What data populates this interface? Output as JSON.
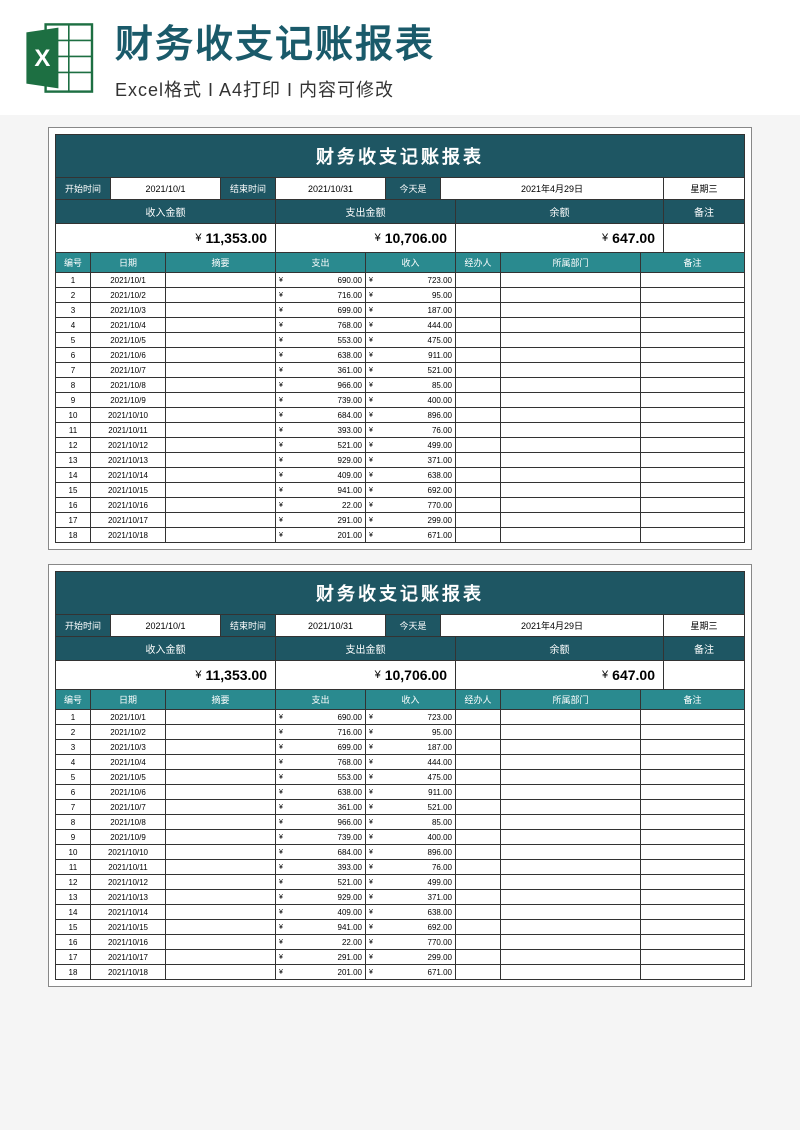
{
  "banner": {
    "title": "财务收支记账报表",
    "subtitle": "Excel格式 I A4打印 I 内容可修改"
  },
  "colors": {
    "header_bg": "#1e5663",
    "subheader_bg": "#2a8a8f",
    "text_white": "#ffffff",
    "border": "#333333",
    "page_bg": "#f5f5f5"
  },
  "report": {
    "title": "财务收支记账报表",
    "date_labels": {
      "start": "开始时间",
      "end": "结束时间",
      "today": "今天是",
      "weekday": "星期三"
    },
    "date_values": {
      "start": "2021/10/1",
      "end": "2021/10/31",
      "today": "2021年4月29日"
    },
    "summary_labels": {
      "income": "收入金额",
      "expense": "支出金额",
      "balance": "余额",
      "note": "备注"
    },
    "summary_values": {
      "income": "11,353.00",
      "expense": "10,706.00",
      "balance": "647.00"
    },
    "columns": {
      "no": "编号",
      "date": "日期",
      "summary": "摘要",
      "expense": "支出",
      "income": "收入",
      "operator": "经办人",
      "dept": "所属部门",
      "note": "备注"
    },
    "currency": "¥",
    "rows": [
      {
        "no": "1",
        "date": "2021/10/1",
        "exp": "690.00",
        "inc": "723.00"
      },
      {
        "no": "2",
        "date": "2021/10/2",
        "exp": "716.00",
        "inc": "95.00"
      },
      {
        "no": "3",
        "date": "2021/10/3",
        "exp": "699.00",
        "inc": "187.00"
      },
      {
        "no": "4",
        "date": "2021/10/4",
        "exp": "768.00",
        "inc": "444.00"
      },
      {
        "no": "5",
        "date": "2021/10/5",
        "exp": "553.00",
        "inc": "475.00"
      },
      {
        "no": "6",
        "date": "2021/10/6",
        "exp": "638.00",
        "inc": "911.00"
      },
      {
        "no": "7",
        "date": "2021/10/7",
        "exp": "361.00",
        "inc": "521.00"
      },
      {
        "no": "8",
        "date": "2021/10/8",
        "exp": "966.00",
        "inc": "85.00"
      },
      {
        "no": "9",
        "date": "2021/10/9",
        "exp": "739.00",
        "inc": "400.00"
      },
      {
        "no": "10",
        "date": "2021/10/10",
        "exp": "684.00",
        "inc": "896.00"
      },
      {
        "no": "11",
        "date": "2021/10/11",
        "exp": "393.00",
        "inc": "76.00"
      },
      {
        "no": "12",
        "date": "2021/10/12",
        "exp": "521.00",
        "inc": "499.00"
      },
      {
        "no": "13",
        "date": "2021/10/13",
        "exp": "929.00",
        "inc": "371.00"
      },
      {
        "no": "14",
        "date": "2021/10/14",
        "exp": "409.00",
        "inc": "638.00"
      },
      {
        "no": "15",
        "date": "2021/10/15",
        "exp": "941.00",
        "inc": "692.00"
      },
      {
        "no": "16",
        "date": "2021/10/16",
        "exp": "22.00",
        "inc": "770.00"
      },
      {
        "no": "17",
        "date": "2021/10/17",
        "exp": "291.00",
        "inc": "299.00"
      },
      {
        "no": "18",
        "date": "2021/10/18",
        "exp": "201.00",
        "inc": "671.00"
      }
    ]
  }
}
